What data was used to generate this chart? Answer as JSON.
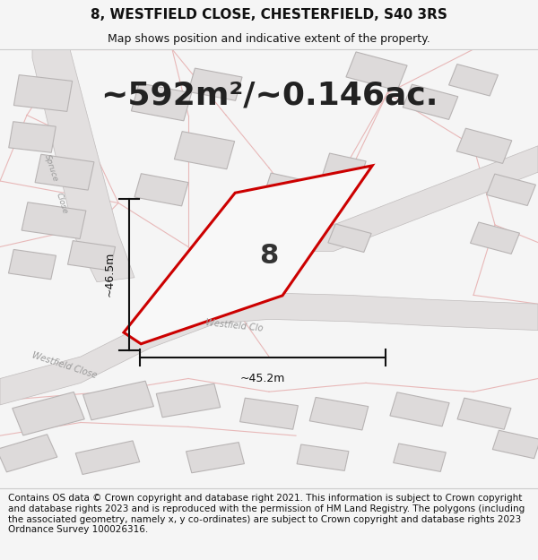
{
  "title": "8, WESTFIELD CLOSE, CHESTERFIELD, S40 3RS",
  "subtitle": "Map shows position and indicative extent of the property.",
  "area_text": "~592m²/~0.146ac.",
  "number_label": "8",
  "dim_vertical": "~46.5m",
  "dim_horizontal": "~45.2m",
  "street_label_main": "Westfield Clo",
  "street_label_lower": "Westfield Close",
  "spruce_label": "Spruce\nClose",
  "footer": "Contains OS data © Crown copyright and database right 2021. This information is subject to Crown copyright and database rights 2023 and is reproduced with the permission of HM Land Registry. The polygons (including the associated geometry, namely x, y co-ordinates) are subject to Crown copyright and database rights 2023 Ordnance Survey 100026316.",
  "bg_color": "#f5f5f5",
  "map_bg": "#f8f6f6",
  "road_fill": "#e2dfdf",
  "road_edge": "#c0bcbc",
  "bld_fill": "#dddada",
  "bld_edge": "#b8b4b4",
  "cadastral_color": "#e8b8b8",
  "plot_edge": "#cc0000",
  "plot_fill": "#f8f8f8",
  "dim_color": "#111111",
  "label_color": "#999999",
  "title_color": "#111111",
  "title_fontsize": 11,
  "subtitle_fontsize": 9,
  "area_fontsize": 26,
  "number_fontsize": 22,
  "footer_fontsize": 7.5
}
